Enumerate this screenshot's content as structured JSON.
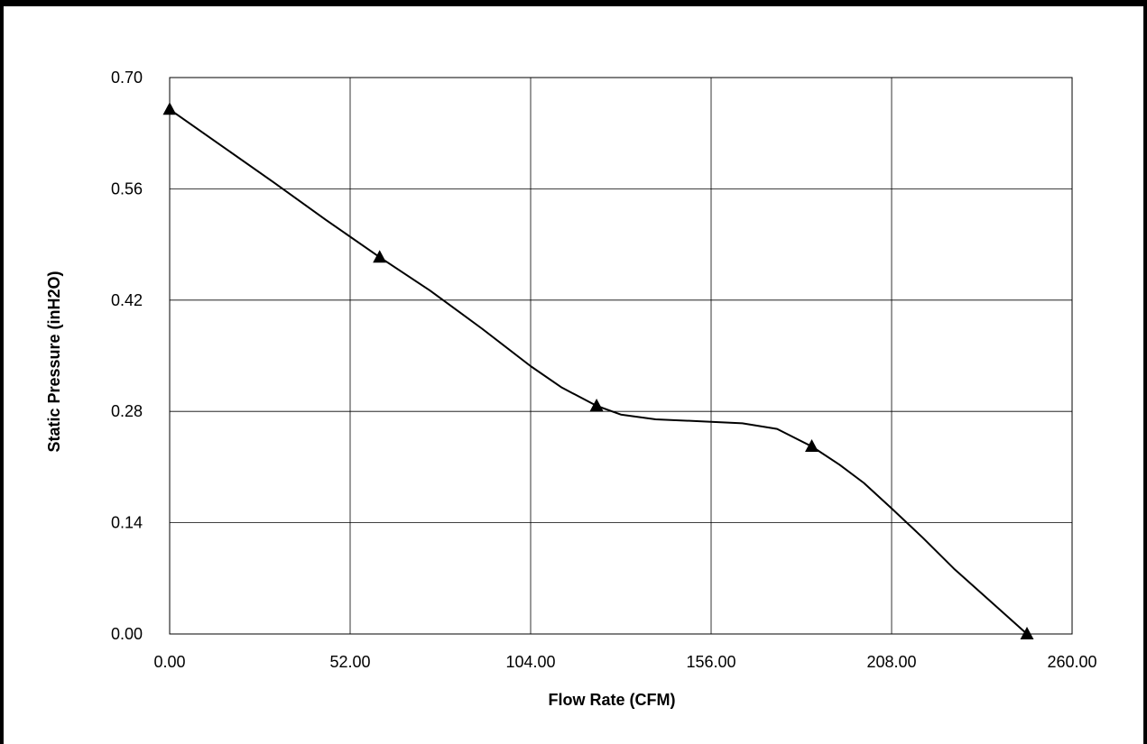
{
  "chart_data": {
    "type": "line",
    "title": "",
    "xlabel": "Flow Rate (CFM)",
    "ylabel": "Static Pressure (inH2O)",
    "xlim": [
      0,
      260
    ],
    "ylim": [
      0,
      0.7
    ],
    "xticks": [
      "0.00",
      "52.00",
      "104.00",
      "156.00",
      "208.00",
      "260.00"
    ],
    "yticks": [
      "0.00",
      "0.14",
      "0.28",
      "0.42",
      "0.56",
      "0.70"
    ],
    "grid": true,
    "marker": "triangle",
    "line_color": "#000000",
    "series": [
      {
        "points": [
          [
            0,
            0.66
          ],
          [
            60.5,
            0.474
          ],
          [
            123,
            0.287
          ],
          [
            185,
            0.236
          ],
          [
            247,
            0.0
          ]
        ],
        "curve": [
          [
            0,
            0.66
          ],
          [
            15,
            0.614
          ],
          [
            30,
            0.568
          ],
          [
            45,
            0.521
          ],
          [
            60.5,
            0.474
          ],
          [
            75,
            0.432
          ],
          [
            90,
            0.384
          ],
          [
            104,
            0.337
          ],
          [
            113,
            0.31
          ],
          [
            123,
            0.287
          ],
          [
            130,
            0.276
          ],
          [
            140,
            0.27
          ],
          [
            156,
            0.267
          ],
          [
            165,
            0.265
          ],
          [
            175,
            0.258
          ],
          [
            185,
            0.236
          ],
          [
            193,
            0.213
          ],
          [
            200,
            0.19
          ],
          [
            208,
            0.158
          ],
          [
            217,
            0.121
          ],
          [
            226,
            0.082
          ],
          [
            236,
            0.043
          ],
          [
            247,
            0.0
          ]
        ]
      }
    ]
  }
}
